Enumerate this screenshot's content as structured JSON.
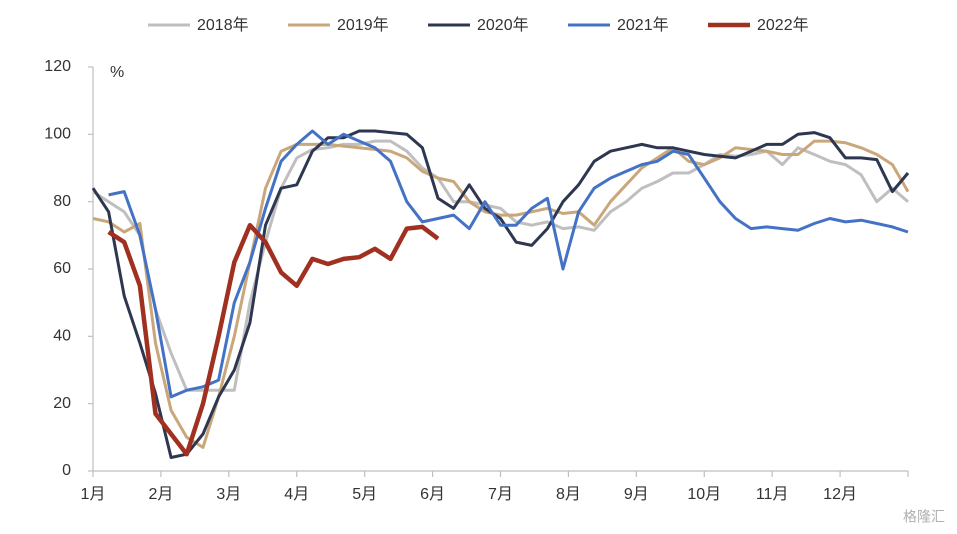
{
  "chart_data": {
    "type": "line",
    "y_label": "%",
    "watermark": "格隆汇",
    "x": [
      1.0,
      1.23,
      1.46,
      1.69,
      1.92,
      2.15,
      2.38,
      2.62,
      2.85,
      3.08,
      3.31,
      3.54,
      3.77,
      4.0,
      4.23,
      4.46,
      4.69,
      4.92,
      5.15,
      5.38,
      5.62,
      5.85,
      6.08,
      6.31,
      6.54,
      6.77,
      7.0,
      7.23,
      7.46,
      7.69,
      7.92,
      8.15,
      8.38,
      8.62,
      8.85,
      9.08,
      9.31,
      9.54,
      9.77,
      10.0,
      10.23,
      10.46,
      10.69,
      10.92,
      11.15,
      11.38,
      11.62,
      11.85,
      12.08,
      12.31,
      12.54,
      12.77,
      13.0
    ],
    "series": [
      {
        "name": "2018年",
        "color": "#bfbfbf",
        "width": 3,
        "values": [
          83,
          80,
          77,
          70,
          48,
          35,
          24,
          24,
          24,
          24,
          50,
          68,
          84,
          93,
          95.5,
          96,
          97,
          97,
          98,
          98,
          95,
          90,
          87,
          80,
          80,
          79,
          78,
          74,
          73,
          74,
          72,
          72.5,
          71.5,
          77,
          80,
          84,
          86,
          88.5,
          88.5,
          91,
          94,
          93.5,
          94,
          95,
          91,
          96,
          94,
          92,
          91,
          88,
          80,
          84,
          80
        ]
      },
      {
        "name": "2019年",
        "color": "#c9a77a",
        "width": 3,
        "values": [
          75,
          74,
          71,
          73.5,
          38,
          18,
          10,
          7,
          22,
          40,
          62,
          84,
          95,
          97,
          97,
          97,
          96.5,
          96,
          95.5,
          95,
          93,
          89,
          87,
          86,
          80,
          77,
          76,
          76,
          77,
          78,
          76.5,
          77,
          73,
          80,
          85,
          90,
          93,
          96,
          92,
          91,
          93,
          96,
          95.5,
          95,
          94,
          94,
          98,
          98,
          97.5,
          96,
          94,
          91,
          83
        ]
      },
      {
        "name": "2020年",
        "color": "#2e3750",
        "width": 3,
        "values": [
          84,
          77,
          52,
          38,
          23,
          4,
          5,
          11,
          22,
          30,
          44,
          73,
          84,
          85,
          95,
          99,
          99,
          101,
          101,
          100.5,
          100,
          96,
          81,
          78,
          85,
          78,
          75,
          68,
          67,
          72,
          80,
          85,
          92,
          95,
          96,
          97,
          96,
          96,
          95,
          94,
          93.5,
          93,
          95,
          97,
          97,
          100,
          100.5,
          99,
          93,
          93,
          92.5,
          83,
          88.5
        ]
      },
      {
        "name": "2021年",
        "color": "#4472c4",
        "width": 3,
        "values": [
          null,
          82,
          83,
          70,
          48,
          22,
          24,
          25,
          27,
          50,
          62,
          78,
          92,
          97,
          101,
          97,
          100,
          98,
          96,
          92,
          80,
          74,
          75,
          76,
          72,
          80,
          73,
          73,
          78,
          81,
          60,
          77,
          84,
          87,
          89,
          91,
          92,
          95,
          94,
          87,
          80,
          75,
          72,
          72.5,
          72,
          71.5,
          73.5,
          75,
          74,
          74.5,
          73.5,
          72.5,
          71
        ]
      },
      {
        "name": "2022年",
        "color": "#a0301f",
        "width": 4.5,
        "values": [
          null,
          71,
          68,
          55,
          17,
          11,
          5,
          20,
          40,
          62,
          73,
          68,
          59,
          55,
          63,
          61.5,
          63,
          63.5,
          66,
          63,
          72,
          72.5,
          69,
          null,
          null,
          null,
          null,
          null,
          null,
          null,
          null,
          null,
          null,
          null,
          null,
          null,
          null,
          null,
          null,
          null,
          null,
          null,
          null,
          null,
          null,
          null,
          null,
          null,
          null,
          null,
          null,
          null,
          null
        ]
      }
    ],
    "xlim": [
      1,
      13
    ],
    "xticks": [
      {
        "value": 1,
        "label": "1月"
      },
      {
        "value": 2,
        "label": "2月"
      },
      {
        "value": 3,
        "label": "3月"
      },
      {
        "value": 4,
        "label": "4月"
      },
      {
        "value": 5,
        "label": "5月"
      },
      {
        "value": 6,
        "label": "6月"
      },
      {
        "value": 7,
        "label": "7月"
      },
      {
        "value": 8,
        "label": "8月"
      },
      {
        "value": 9,
        "label": "9月"
      },
      {
        "value": 10,
        "label": "10月"
      },
      {
        "value": 11,
        "label": "11月"
      },
      {
        "value": 12,
        "label": "12月"
      },
      13
    ],
    "ylim": [
      0,
      120
    ],
    "yticks": [
      0,
      20,
      40,
      60,
      80,
      100,
      120
    ],
    "grid": false,
    "legend": "top"
  }
}
